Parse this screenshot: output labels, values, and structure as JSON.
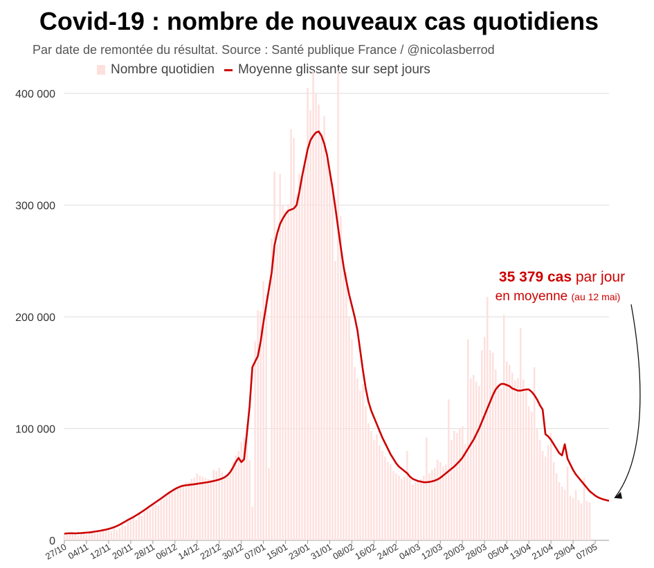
{
  "title": "Covid-19 : nombre de nouveaux cas quotidiens",
  "subtitle": "Par date de remontée du résultat. Source : Santé publique France / @nicolasberrod",
  "annotation": {
    "value": "35 379 cas",
    "per_day": " par jour",
    "on_average": "en moyenne",
    "date": "(au 12 mai)"
  },
  "colors": {
    "bars": "#fde0de",
    "line": "#cc0000",
    "grid": "#dddddd",
    "axis_text": "#333333"
  },
  "chart_data": {
    "type": "bar",
    "title": "Covid-19 : nombre de nouveaux cas quotidiens",
    "ylim": [
      0,
      400000
    ],
    "yticks": [
      0,
      100000,
      200000,
      300000,
      400000
    ],
    "ytick_labels": [
      "0",
      "100 000",
      "200 000",
      "300 000",
      "400 000"
    ],
    "xtick_labels": [
      "27/10",
      "04/11",
      "12/11",
      "20/11",
      "28/11",
      "06/12",
      "14/12",
      "22/12",
      "30/12",
      "07/01",
      "15/01",
      "23/01",
      "31/01",
      "08/02",
      "16/02",
      "24/02",
      "04/03",
      "12/03",
      "20/03",
      "28/03",
      "05/04",
      "13/04",
      "21/04",
      "29/04",
      "07/05"
    ],
    "days_between_ticks": 8,
    "grid": true,
    "series": [
      {
        "name": "Nombre quotidien",
        "type": "bar",
        "values": [
          6000,
          5000,
          6500,
          5500,
          6000,
          4500,
          7000,
          6000,
          5500,
          7500,
          8000,
          6500,
          9000,
          7500,
          8000,
          10000,
          9500,
          8000,
          12000,
          9000,
          11000,
          14000,
          13000,
          18000,
          19000,
          20000,
          18000,
          24000,
          22000,
          26000,
          30000,
          28000,
          33000,
          32000,
          31000,
          36000,
          37000,
          40000,
          42000,
          44000,
          46000,
          48000,
          49000,
          50000,
          52000,
          52000,
          55000,
          56000,
          60000,
          58000,
          57000,
          56000,
          55000,
          54000,
          63000,
          62000,
          65000,
          61000,
          56000,
          57000,
          60000,
          70000,
          76000,
          80000,
          88000,
          92000,
          104000,
          72000,
          30000,
          178000,
          206000,
          205000,
          232000,
          220000,
          65000,
          270000,
          330000,
          265000,
          328000,
          300000,
          295000,
          301000,
          368000,
          360000,
          310000,
          328000,
          325000,
          340000,
          405000,
          385000,
          420000,
          400000,
          390000,
          360000,
          380000,
          340000,
          330000,
          320000,
          250000,
          420000,
          290000,
          248000,
          240000,
          200000,
          180000,
          155000,
          145000,
          134000,
          140000,
          120000,
          105000,
          98000,
          90000,
          95000,
          85000,
          80000,
          75000,
          70000,
          68000,
          62000,
          60000,
          58000,
          55000,
          57000,
          80000,
          55000,
          50000,
          52000,
          53000,
          55000,
          58000,
          92000,
          60000,
          63000,
          65000,
          72000,
          70000,
          66000,
          68000,
          126000,
          90000,
          98000,
          96000,
          100000,
          102000,
          86000,
          180000,
          145000,
          148000,
          142000,
          138000,
          170000,
          182000,
          218000,
          170000,
          168000,
          153000,
          140000,
          136000,
          202000,
          160000,
          157000,
          150000,
          143000,
          145000,
          190000,
          144000,
          135000,
          120000,
          115000,
          155000,
          100000,
          90000,
          80000,
          75000,
          85000,
          96000,
          70000,
          60000,
          52000,
          48000,
          45000,
          66000,
          40000,
          38000,
          45000,
          36000,
          33000,
          56000,
          35000,
          34000
        ]
      },
      {
        "name": "Moyenne glissante sur sept jours",
        "type": "line",
        "values": [
          6000,
          6200,
          6300,
          6300,
          6200,
          6400,
          6500,
          6700,
          6900,
          7100,
          7400,
          7800,
          8200,
          8600,
          9100,
          9600,
          10200,
          10900,
          11800,
          12800,
          14000,
          15400,
          16800,
          18300,
          19600,
          20900,
          22400,
          23900,
          25500,
          27200,
          28900,
          30700,
          32400,
          34100,
          35800,
          37500,
          39300,
          41100,
          42800,
          44400,
          45900,
          47200,
          48200,
          48900,
          49300,
          49600,
          49900,
          50200,
          50600,
          51000,
          51300,
          51700,
          52100,
          52600,
          53100,
          53700,
          54400,
          55300,
          56500,
          58300,
          61100,
          65200,
          70100,
          73800,
          70000,
          72500,
          95000,
          120000,
          155000,
          160000,
          165000,
          178000,
          195000,
          210000,
          225000,
          240000,
          264000,
          275000,
          283000,
          288000,
          292000,
          295000,
          296000,
          297000,
          300000,
          312000,
          326000,
          338000,
          350000,
          358000,
          362000,
          365000,
          366000,
          362000,
          355000,
          345000,
          330000,
          315000,
          298000,
          280000,
          262000,
          245000,
          232000,
          220000,
          210000,
          200000,
          188000,
          170000,
          152000,
          136000,
          124000,
          116000,
          110000,
          104000,
          98000,
          92000,
          87000,
          82000,
          77000,
          73000,
          69000,
          66000,
          64000,
          62000,
          60000,
          57000,
          55000,
          54000,
          53000,
          52500,
          52000,
          52000,
          52300,
          52800,
          53500,
          54500,
          56000,
          58000,
          60000,
          62000,
          64000,
          66000,
          68500,
          71000,
          74000,
          78000,
          82000,
          86000,
          90000,
          95000,
          100000,
          106000,
          112000,
          118000,
          124000,
          130000,
          135000,
          138000,
          140000,
          140000,
          139000,
          138000,
          136000,
          135000,
          134000,
          134000,
          134500,
          135000,
          135000,
          133000,
          130000,
          126000,
          121000,
          117000,
          95000,
          93000,
          90000,
          86000,
          82000,
          78000,
          76000,
          86000,
          73000,
          68000,
          63000,
          59000,
          56000,
          53000,
          50000,
          47000,
          44000,
          42000,
          40000,
          38500,
          37500,
          36600,
          36000,
          35379
        ]
      }
    ]
  }
}
